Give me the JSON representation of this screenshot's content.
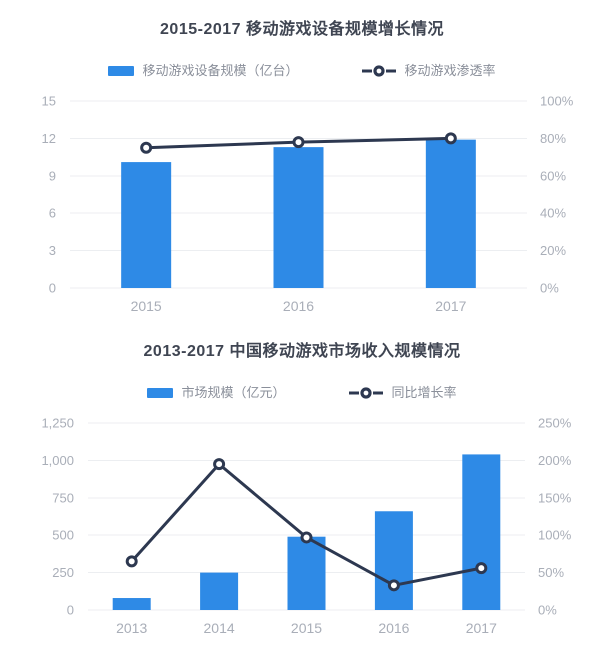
{
  "colors": {
    "bar": "#2e8ae6",
    "line": "#2d3850",
    "marker_fill": "#ffffff",
    "grid": "#eceef1",
    "axis_text": "#a9aeb8",
    "title_text": "#3f4552",
    "legend_text": "#8a8f9a",
    "background": "#ffffff"
  },
  "chart_data": [
    {
      "type": "bar+line",
      "title": "2015-2017 移动游戏设备规模增长情况",
      "categories": [
        "2015",
        "2016",
        "2017"
      ],
      "series": [
        {
          "name": "移动游戏设备规模（亿台）",
          "type": "bar",
          "axis": "left",
          "values": [
            10.1,
            11.3,
            11.9
          ]
        },
        {
          "name": "移动游戏渗透率",
          "type": "line",
          "axis": "right",
          "unit": "%",
          "values": [
            75,
            78,
            80
          ]
        }
      ],
      "left_axis": {
        "min": 0,
        "max": 15,
        "tick_labels": [
          "0",
          "3",
          "6",
          "9",
          "12",
          "15"
        ]
      },
      "right_axis": {
        "min": 0,
        "max": 100,
        "tick_labels": [
          "0%",
          "20%",
          "40%",
          "60%",
          "80%",
          "100%"
        ]
      },
      "grid": "horizontal",
      "legend_position": "top"
    },
    {
      "type": "bar+line",
      "title": "2013-2017 中国移动游戏市场收入规模情况",
      "categories": [
        "2013",
        "2014",
        "2015",
        "2016",
        "2017"
      ],
      "series": [
        {
          "name": "市场规模（亿元）",
          "type": "bar",
          "axis": "left",
          "values": [
            80,
            250,
            490,
            660,
            1040
          ]
        },
        {
          "name": "同比增长率",
          "type": "line",
          "axis": "right",
          "unit": "%",
          "values": [
            65,
            195,
            97,
            33,
            56
          ]
        }
      ],
      "left_axis": {
        "min": 0,
        "max": 1250,
        "tick_labels": [
          "0",
          "250",
          "500",
          "750",
          "1,000",
          "1,250"
        ]
      },
      "right_axis": {
        "min": 0,
        "max": 250,
        "tick_labels": [
          "0%",
          "50%",
          "100%",
          "150%",
          "200%",
          "250%"
        ]
      },
      "grid": "horizontal",
      "legend_position": "top"
    }
  ]
}
